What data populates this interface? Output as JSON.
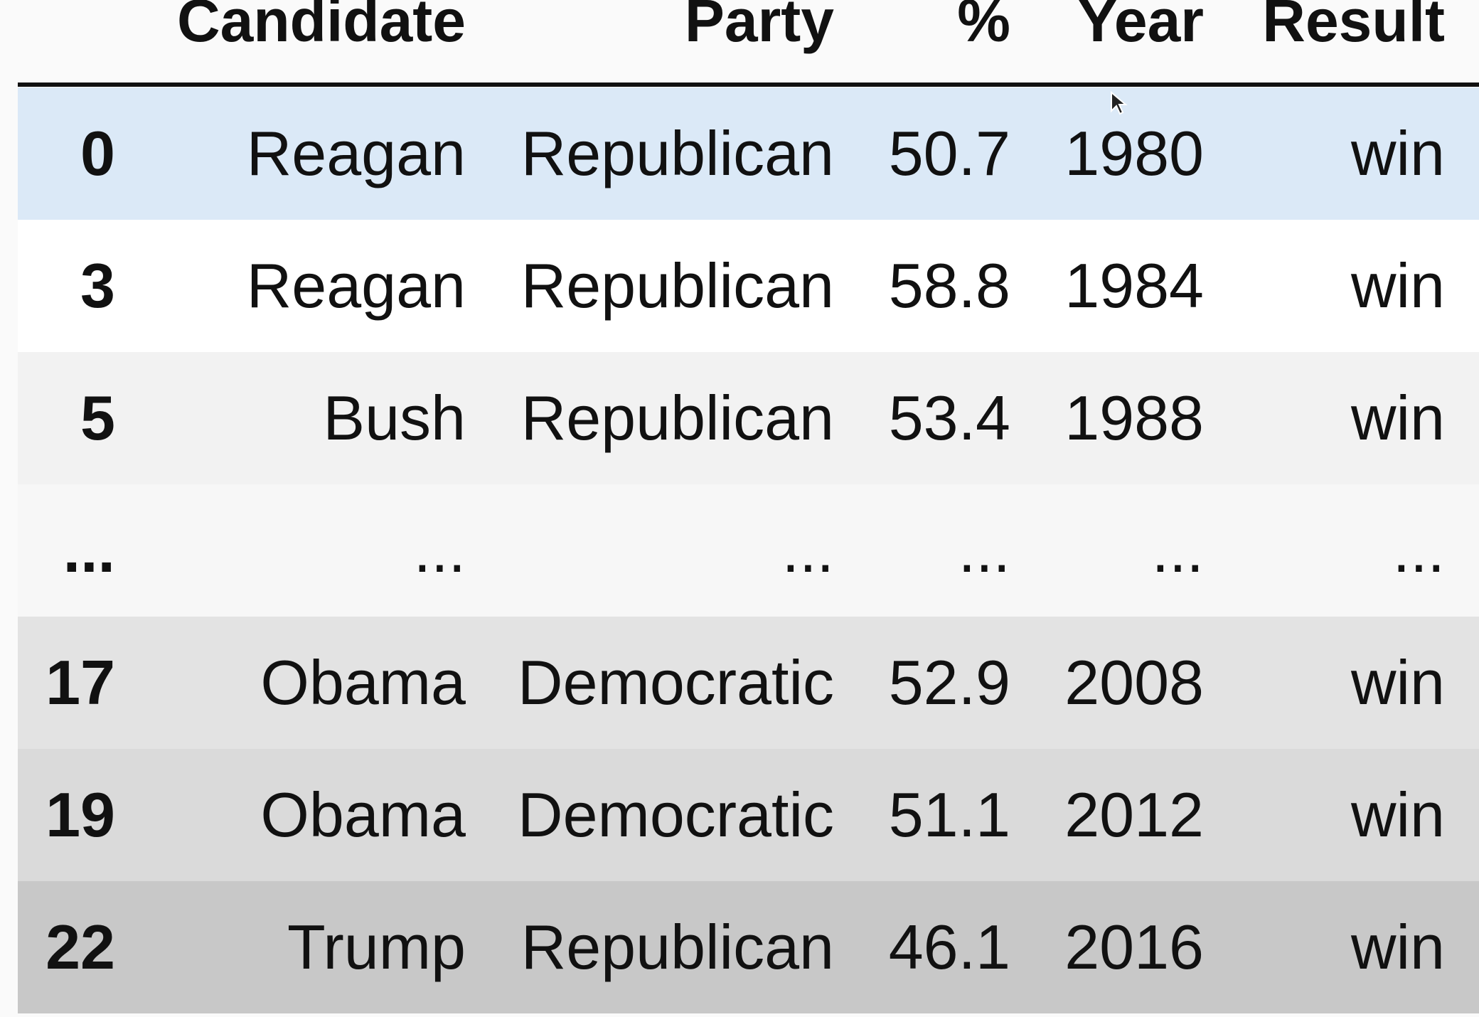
{
  "table": {
    "columns": [
      "Candidate",
      "Party",
      "%",
      "Year",
      "Result"
    ],
    "rows": [
      [
        0,
        "Reagan",
        "Republican",
        50.7,
        1980,
        "win"
      ],
      [
        3,
        "Reagan",
        "Republican",
        58.8,
        1984,
        "win"
      ],
      [
        5,
        "Bush",
        "Republican",
        53.4,
        1988,
        "win"
      ],
      [
        "...",
        "...",
        "...",
        "...",
        "...",
        "..."
      ],
      [
        17,
        "Obama",
        "Democratic",
        52.9,
        2008,
        "win"
      ],
      [
        19,
        "Obama",
        "Democratic",
        51.1,
        2012,
        "win"
      ],
      [
        22,
        "Trump",
        "Republican",
        46.1,
        2016,
        "win"
      ]
    ]
  }
}
